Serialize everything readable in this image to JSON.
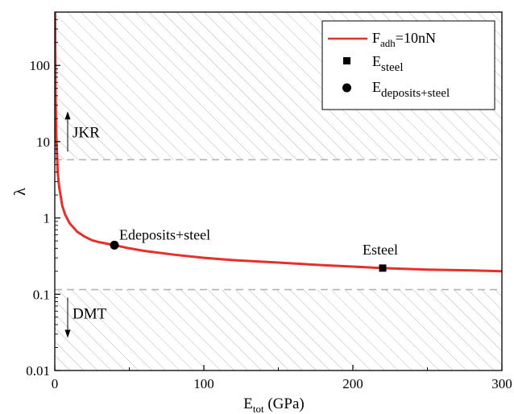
{
  "chart_data": {
    "type": "line",
    "xlabel": {
      "main": "E",
      "sub": "tot",
      "rest": " (GPa)"
    },
    "ylabel": "λ",
    "xlim": [
      0,
      300
    ],
    "ylim": [
      0.01,
      500
    ],
    "y_scale": "log",
    "x_ticks": [
      0,
      100,
      200,
      300
    ],
    "x_tick_labels": [
      "0",
      "100",
      "200",
      "300"
    ],
    "y_ticks": [
      0.01,
      0.1,
      1,
      10,
      100
    ],
    "y_tick_labels": [
      "0.01",
      "0.1",
      "1",
      "10",
      "100"
    ],
    "grid": false,
    "legend_position": "top-right",
    "series": [
      {
        "name_main": "F",
        "name_sub": "adh",
        "name_rest": "=10nN",
        "style": "line",
        "color": "#e8302a",
        "x": [
          0.2,
          0.5,
          1,
          2,
          3,
          5,
          7,
          10,
          15,
          20,
          25,
          30,
          40,
          50,
          60,
          80,
          100,
          120,
          150,
          180,
          200,
          220,
          250,
          280,
          300
        ],
        "values": [
          500,
          45,
          12,
          3.9,
          2.5,
          1.45,
          1.1,
          0.85,
          0.66,
          0.57,
          0.51,
          0.48,
          0.44,
          0.4,
          0.37,
          0.33,
          0.3,
          0.28,
          0.26,
          0.24,
          0.23,
          0.22,
          0.21,
          0.205,
          0.2
        ]
      }
    ],
    "points": [
      {
        "name_main": "E",
        "name_sub": "steel",
        "marker": "square",
        "x": 220,
        "y": 0.22,
        "label": "Esteel"
      },
      {
        "name_main": "E",
        "name_sub": "deposits+steel",
        "marker": "circle",
        "x": 40,
        "y": 0.44,
        "label": "Edeposits+steel"
      }
    ],
    "regions": [
      {
        "label": "JKR",
        "from": 5.8,
        "to": 500,
        "arrow": "up"
      },
      {
        "label": "DMT",
        "from": 0.01,
        "to": 0.115,
        "arrow": "down"
      }
    ],
    "colors": {
      "curve": "#e8302a",
      "markers": "#000000",
      "hatch": "#b5b5b5",
      "threshold": "#b5b5b5"
    }
  }
}
